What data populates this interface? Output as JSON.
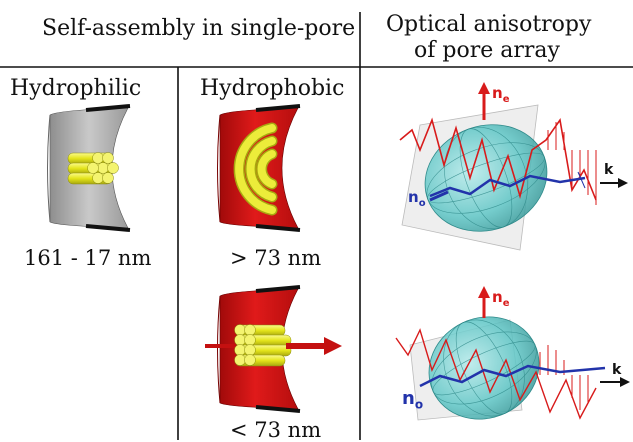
{
  "header": {
    "left_title": "Self-assembly in single-pore",
    "right_title_line1": "Optical anisotropy",
    "right_title_line2": "of pore array"
  },
  "columns": {
    "hydrophilic_label": "Hydrophilic",
    "hydrophobic_label": "Hydrophobic"
  },
  "size_labels": {
    "hydrophilic": "161 - 17 nm",
    "hydrophobic_top": "> 73 nm",
    "hydrophobic_bottom": "< 73 nm"
  },
  "optics": {
    "ne_label": "n",
    "ne_sub": "e",
    "no_label": "n",
    "no_sub": "o",
    "k_label": "k"
  },
  "colors": {
    "hydrophilic_wall": "#b3b3b3",
    "hydrophobic_wall": "#d21010",
    "cylinder": "#e8e820",
    "ellipsoid": "#5fc6c6",
    "wave_red": "#d81b1b",
    "wave_blue": "#2233aa",
    "divider": "#111111"
  }
}
